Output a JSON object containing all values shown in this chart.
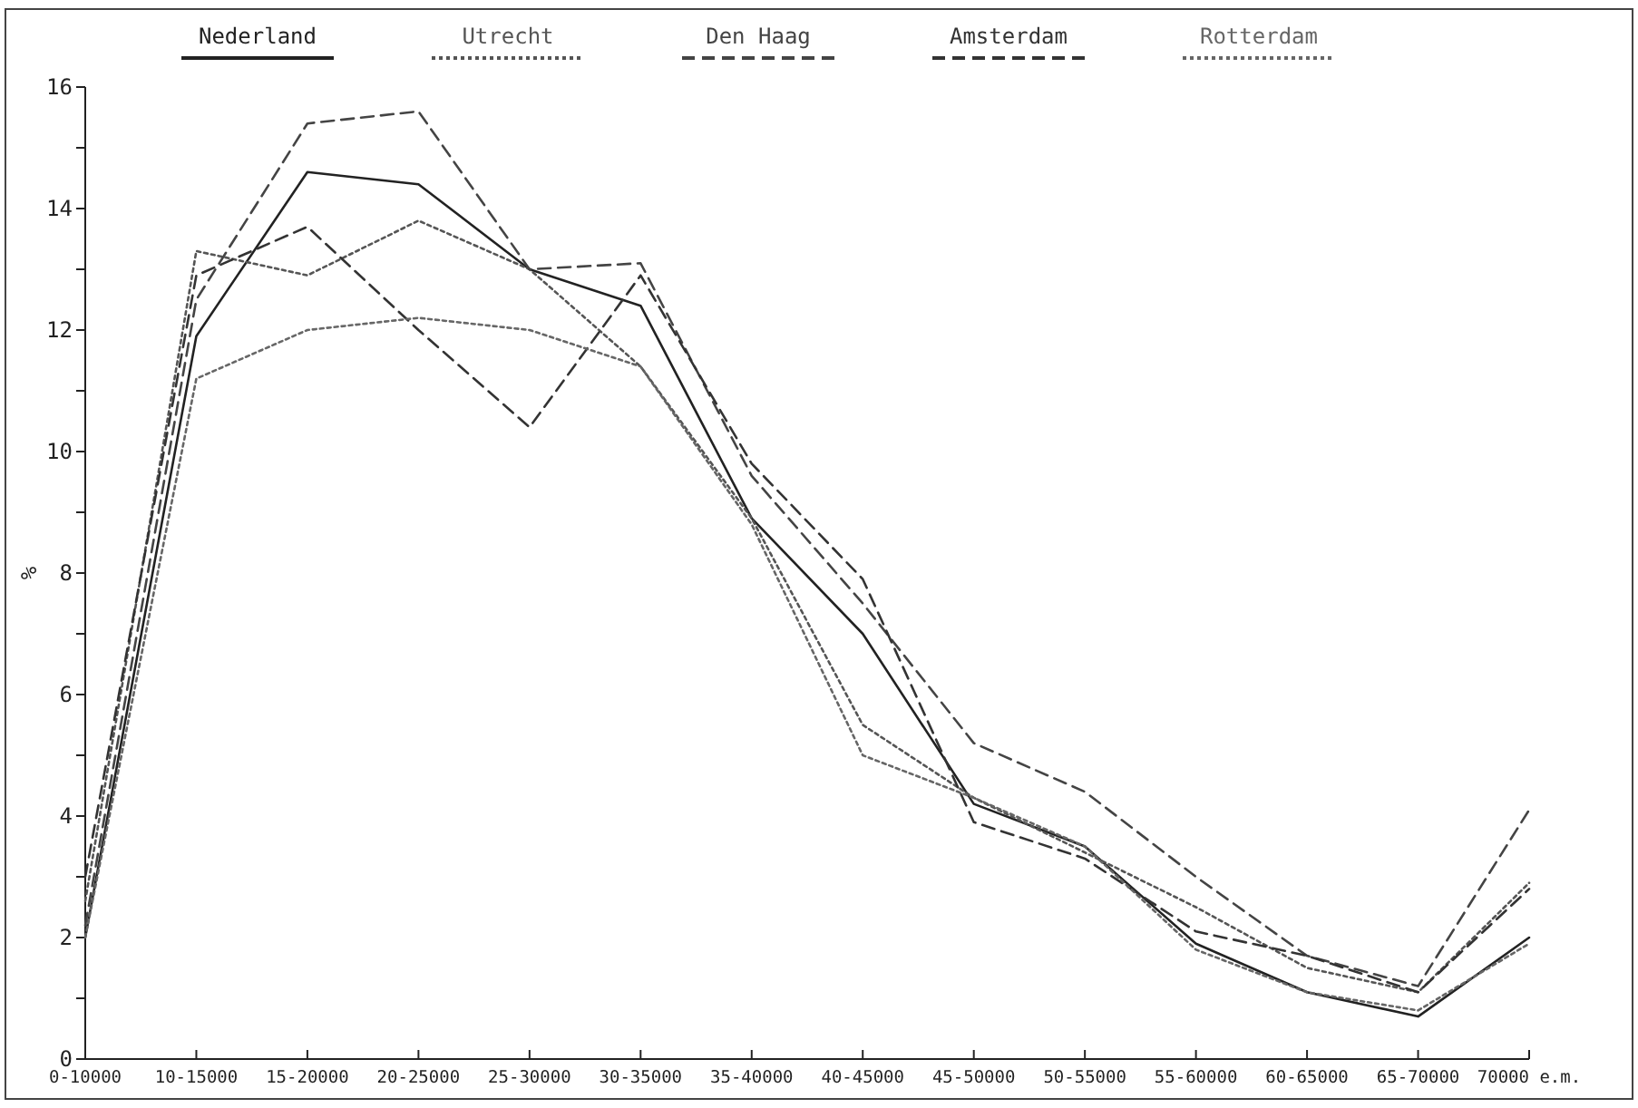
{
  "chart_data": {
    "type": "line",
    "ylabel": "%",
    "categories": [
      "0-10000",
      "10-15000",
      "15-20000",
      "20-25000",
      "25-30000",
      "30-35000",
      "35-40000",
      "40-45000",
      "45-50000",
      "50-55000",
      "55-60000",
      "60-65000",
      "65-70000",
      "70000 e.m."
    ],
    "series": [
      {
        "name": "Nederland",
        "color": "#222222",
        "line_style": "solid",
        "values": [
          2.0,
          11.9,
          14.6,
          14.4,
          13.0,
          12.4,
          8.9,
          7.0,
          4.2,
          3.5,
          1.9,
          1.1,
          0.7,
          2.0
        ]
      },
      {
        "name": "Utrecht",
        "color": "#555555",
        "line_style": "dotted",
        "values": [
          2.6,
          13.3,
          12.9,
          13.8,
          13.0,
          11.4,
          8.9,
          5.5,
          4.3,
          3.4,
          2.5,
          1.5,
          1.1,
          2.9
        ]
      },
      {
        "name": "Den Haag",
        "color": "#444444",
        "line_style": "dashed",
        "values": [
          2.2,
          12.5,
          15.4,
          15.6,
          13.0,
          13.1,
          9.6,
          7.5,
          5.2,
          4.4,
          3.0,
          1.7,
          1.2,
          4.1
        ]
      },
      {
        "name": "Amsterdam",
        "color": "#333333",
        "line_style": "dashed",
        "values": [
          3.0,
          12.9,
          13.7,
          12.0,
          10.4,
          12.9,
          9.8,
          7.9,
          3.9,
          3.3,
          2.1,
          1.7,
          1.1,
          2.8
        ]
      },
      {
        "name": "Rotterdam",
        "color": "#666666",
        "line_style": "dotted",
        "values": [
          2.0,
          11.2,
          12.0,
          12.2,
          12.0,
          11.4,
          8.8,
          5.0,
          4.3,
          3.5,
          1.8,
          1.1,
          0.8,
          1.9
        ]
      }
    ],
    "ylim": [
      0,
      16
    ],
    "yticks": [
      0,
      {
        "value": 1,
        "label": null
      },
      2,
      {
        "value": 3,
        "label": null
      },
      4,
      {
        "value": 5,
        "label": null
      },
      6,
      {
        "value": 7,
        "label": null
      },
      8,
      {
        "value": 9,
        "label": null
      },
      10,
      {
        "value": 11,
        "label": null
      },
      12,
      {
        "value": 13,
        "label": null
      },
      14,
      {
        "value": 15,
        "label": null
      },
      16
    ],
    "grid": false,
    "legend": "top"
  }
}
